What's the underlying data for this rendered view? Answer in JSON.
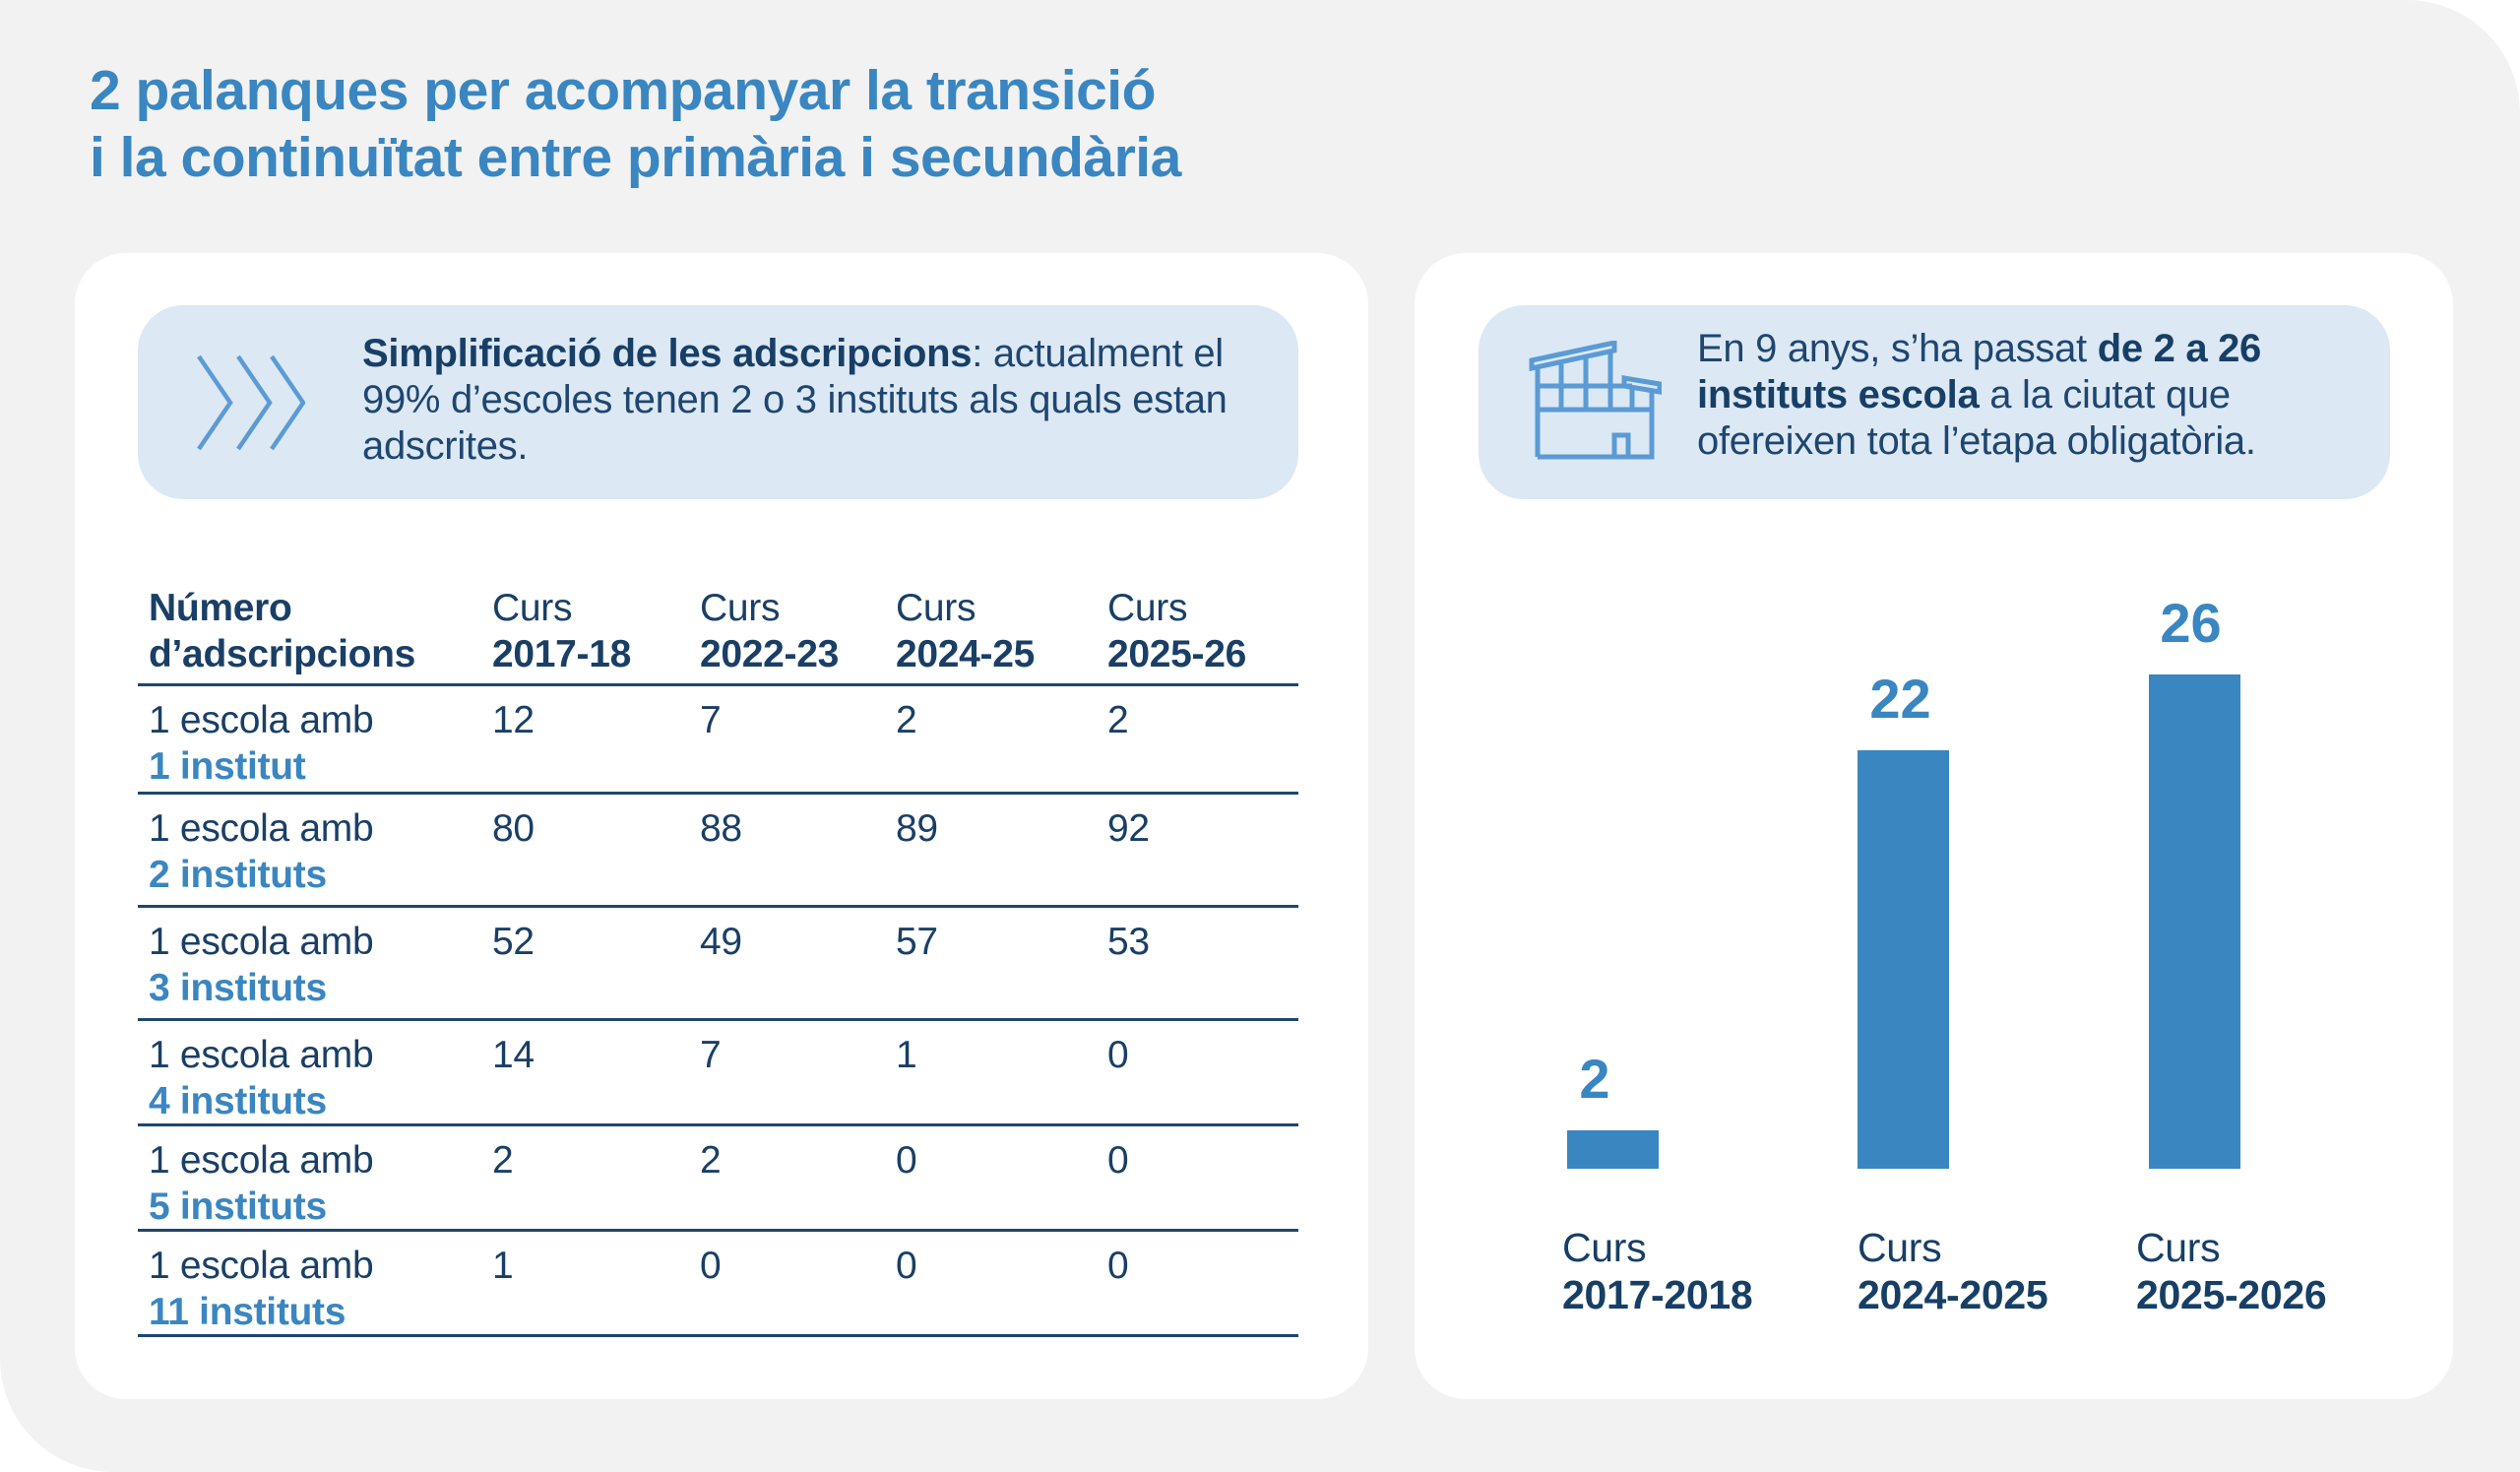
{
  "title": {
    "line1": "2 palanques per acompanyar la transició",
    "line2": "i la continuïtat entre primària i secundària"
  },
  "colors": {
    "accent": "#3a86c1",
    "dark_text": "#1a3f66",
    "info_bg": "#dce8f4",
    "page_bg": "#f2f2f2",
    "panel_bg": "#ffffff"
  },
  "left_panel": {
    "info": {
      "icon": "chevrons-right-icon",
      "bold": "Simplificació de les adscripcions",
      "rest": ": actualment el 99% d’escoles tenen 2 o 3 instituts als quals estan adscrites."
    },
    "table": {
      "header_label": "Número d’adscripcions",
      "columns": [
        {
          "prefix": "Curs",
          "year": "2017-18"
        },
        {
          "prefix": "Curs",
          "year": "2022-23"
        },
        {
          "prefix": "Curs",
          "year": "2024-25"
        },
        {
          "prefix": "Curs",
          "year": "2025-26"
        }
      ],
      "rows": [
        {
          "label_top": "1 escola amb",
          "label_bottom": "1 institut",
          "values": [
            "12",
            "7",
            "2",
            "2"
          ]
        },
        {
          "label_top": "1 escola amb",
          "label_bottom": "2 instituts",
          "values": [
            "80",
            "88",
            "89",
            "92"
          ]
        },
        {
          "label_top": "1 escola amb",
          "label_bottom": "3 instituts",
          "values": [
            "52",
            "49",
            "57",
            "53"
          ]
        },
        {
          "label_top": "1 escola amb",
          "label_bottom": "4 instituts",
          "values": [
            "14",
            "7",
            "1",
            "0"
          ]
        },
        {
          "label_top": "1 escola amb",
          "label_bottom": "5 instituts",
          "values": [
            "2",
            "2",
            "0",
            "0"
          ]
        },
        {
          "label_top": "1 escola amb",
          "label_bottom": "11 instituts",
          "values": [
            "1",
            "0",
            "0",
            "0"
          ]
        }
      ]
    }
  },
  "right_panel": {
    "info": {
      "icon": "school-building-icon",
      "part1": "En 9 anys, s’ha passat ",
      "bold": "de 2 a 26 instituts escola",
      "part2": " a la ciutat que ofereixen tota l’etapa obligatòria."
    }
  },
  "chart_data": {
    "type": "bar",
    "title": "",
    "xlabel": "",
    "ylabel": "",
    "categories": [
      "Curs 2017-2018",
      "Curs 2024-2025",
      "Curs 2025-2026"
    ],
    "category_prefix": [
      "Curs",
      "Curs",
      "Curs"
    ],
    "category_years": [
      "2017-2018",
      "2024-2025",
      "2025-2026"
    ],
    "values": [
      2,
      22,
      26
    ],
    "data_labels": [
      "2",
      "22",
      "26"
    ],
    "ylim": [
      0,
      26
    ],
    "grid": false,
    "legend": "none",
    "bar_color": "#3a86c1"
  }
}
